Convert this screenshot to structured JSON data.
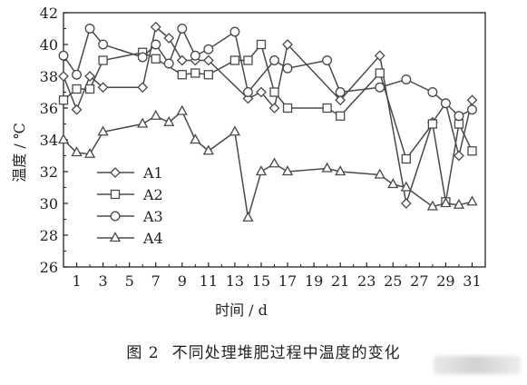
{
  "chart_data": {
    "type": "line",
    "xlabel": "时间 / d",
    "ylabel": "温度 / ℃",
    "xlim": [
      0,
      32
    ],
    "ylim": [
      26,
      42
    ],
    "xticks": [
      1,
      3,
      5,
      7,
      9,
      11,
      13,
      15,
      17,
      19,
      21,
      23,
      25,
      27,
      29,
      31
    ],
    "yticks": [
      26,
      28,
      30,
      32,
      34,
      36,
      38,
      40,
      42
    ],
    "grid": false,
    "legend_position": "left-bottom",
    "series": [
      {
        "name": "A1",
        "marker": "diamond",
        "x": [
          0,
          1,
          2,
          3,
          6,
          7,
          8,
          9,
          10,
          11,
          14,
          15,
          16,
          17,
          21,
          24,
          26,
          28,
          29,
          30,
          31
        ],
        "y": [
          38.0,
          35.9,
          38.0,
          37.3,
          37.3,
          41.1,
          40.4,
          39.0,
          39.0,
          39.0,
          36.6,
          37.0,
          36.0,
          40.0,
          36.5,
          39.3,
          30.0,
          35.1,
          36.3,
          33.0,
          36.5
        ]
      },
      {
        "name": "A2",
        "marker": "square",
        "x": [
          0,
          1,
          2,
          3,
          6,
          7,
          9,
          10,
          11,
          13,
          14,
          15,
          16,
          17,
          20,
          21,
          24,
          26,
          28,
          29,
          30,
          31
        ],
        "y": [
          36.5,
          37.2,
          37.2,
          39.0,
          39.5,
          39.1,
          38.1,
          38.2,
          38.1,
          39.0,
          39.0,
          40.0,
          37.0,
          36.0,
          36.0,
          35.5,
          38.2,
          32.8,
          35.0,
          30.1,
          35.0,
          33.3
        ]
      },
      {
        "name": "A3",
        "marker": "circle",
        "x": [
          0,
          1,
          2,
          3,
          6,
          7,
          8,
          9,
          10,
          11,
          13,
          14,
          16,
          17,
          20,
          21,
          24,
          26,
          28,
          29,
          30,
          31
        ],
        "y": [
          39.3,
          38.1,
          41.0,
          40.0,
          39.2,
          40.0,
          38.8,
          41.0,
          39.3,
          39.7,
          40.8,
          37.0,
          39.0,
          38.5,
          39.0,
          37.0,
          37.3,
          37.8,
          37.0,
          36.3,
          35.5,
          35.9
        ]
      },
      {
        "name": "A4",
        "marker": "triangle",
        "x": [
          0,
          1,
          2,
          3,
          6,
          7,
          8,
          9,
          10,
          11,
          13,
          14,
          15,
          16,
          17,
          20,
          21,
          24,
          25,
          26,
          28,
          29,
          30,
          31
        ],
        "y": [
          34.0,
          33.2,
          33.1,
          34.5,
          35.0,
          35.5,
          35.1,
          35.8,
          34.0,
          33.3,
          34.5,
          29.1,
          32.0,
          32.5,
          32.0,
          32.2,
          32.0,
          31.8,
          31.2,
          31.0,
          29.8,
          30.0,
          29.9,
          30.1
        ]
      }
    ]
  },
  "caption": {
    "figure_number": "图 2",
    "text": "不同处理堆肥过程中温度的变化"
  },
  "colors": {
    "line": "#4a4a4a",
    "marker_fill": "#ffffff"
  }
}
